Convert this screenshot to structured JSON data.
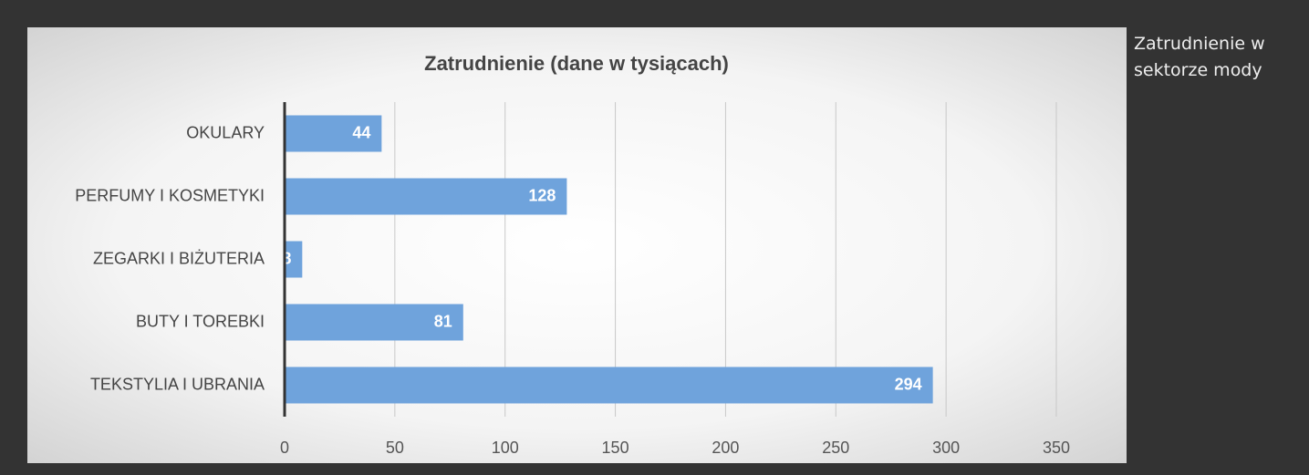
{
  "chart_data": {
    "type": "barh",
    "title": "Zatrudnienie (dane w tysiącach)",
    "categories": [
      "OKULARY",
      "PERFUMY I KOSMETYKI",
      "ZEGARKI I BIŻUTERIA",
      "BUTY I TOREBKI",
      "TEKSTYLIA I UBRANIA"
    ],
    "values": [
      44,
      128,
      8,
      81,
      294
    ],
    "color": "#6fa3dc",
    "xlim": [
      0,
      350
    ],
    "xticks": [
      0,
      50,
      100,
      150,
      200,
      250,
      300,
      350
    ],
    "grid": true
  },
  "caption": "Zatrudnienie w sektorze mody"
}
